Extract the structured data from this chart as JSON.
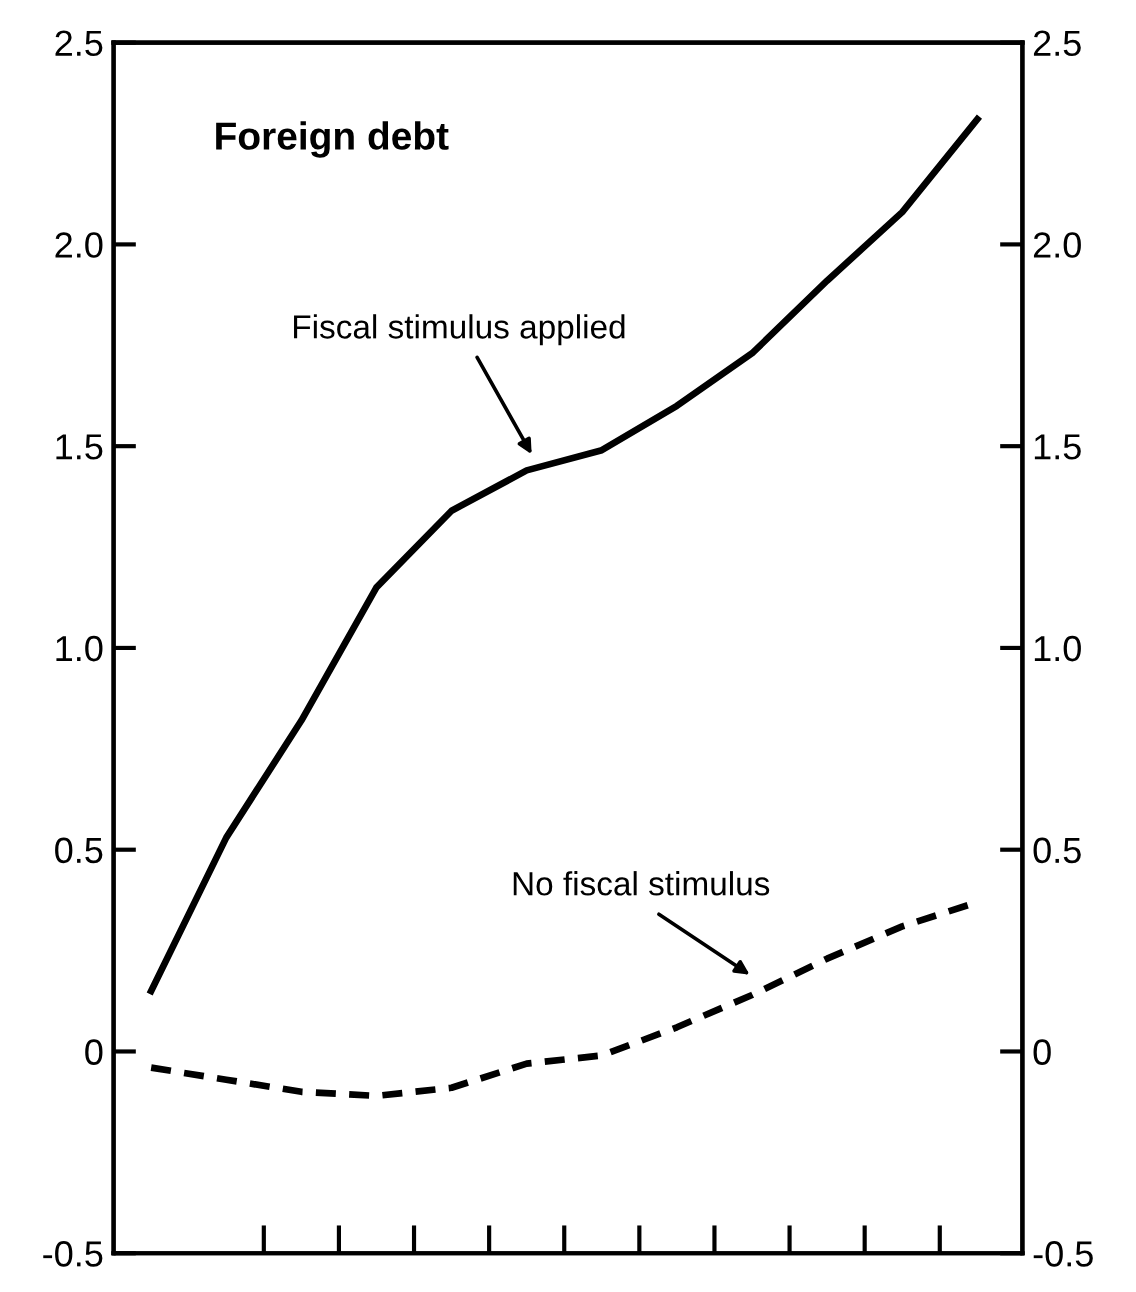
{
  "chart_data": {
    "type": "line",
    "title": "Foreign debt",
    "categories": [
      null,
      null,
      null,
      null,
      null,
      null,
      null,
      null,
      null,
      null,
      null,
      null
    ],
    "series": [
      {
        "color": "#000000",
        "line_style": "solid",
        "values": [
          0.15,
          0.53,
          0.82,
          1.15,
          1.34,
          1.44,
          1.49,
          1.6,
          1.73,
          1.91,
          2.08,
          2.31
        ]
      },
      {
        "color": "#000000",
        "line_style": "dashed",
        "values": [
          -0.04,
          -0.07,
          -0.1,
          -0.11,
          -0.09,
          -0.03,
          -0.01,
          0.06,
          0.14,
          0.23,
          0.31,
          0.37
        ]
      }
    ],
    "annotations": [
      "Fiscal stimulus applied",
      "No fiscal stimulus"
    ],
    "ylim": [
      -0.5,
      2.5
    ],
    "yticks": [
      -0.5,
      0,
      0.5,
      {
        "value": 1,
        "label": "1.0"
      },
      1.5,
      {
        "value": 2,
        "label": "2.0"
      },
      2.5
    ],
    "y2lim": [
      -0.5,
      2.5
    ],
    "y2ticks": [
      -0.5,
      0,
      0.5,
      {
        "value": 1,
        "label": "1.0"
      },
      1.5,
      {
        "value": 2,
        "label": "2.0"
      },
      2.5
    ],
    "grid": false
  }
}
